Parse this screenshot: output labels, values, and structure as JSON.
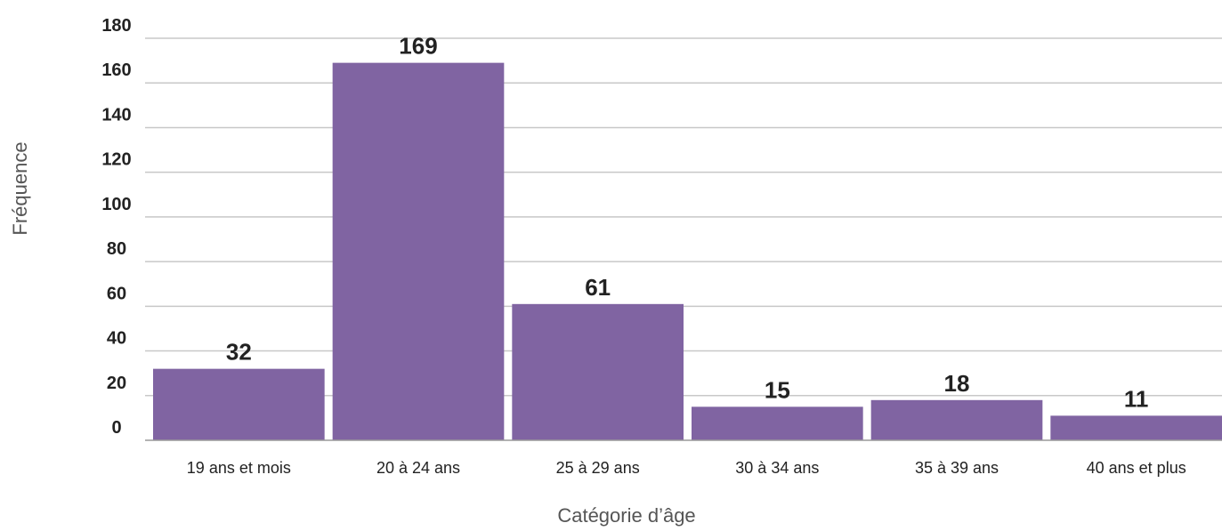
{
  "chart_data": {
    "type": "bar",
    "categories": [
      "19 ans et mois",
      "20 à 24 ans",
      "25 à 29 ans",
      "30 à 34 ans",
      "35 à 39 ans",
      "40 ans et plus"
    ],
    "values": [
      32,
      169,
      61,
      15,
      18,
      11
    ],
    "xlabel": "Catégorie d’âge",
    "ylabel": "Fréquence",
    "ylim": [
      0,
      180
    ],
    "yticks": [
      0,
      20,
      40,
      60,
      80,
      100,
      120,
      140,
      160,
      180
    ],
    "grid": true,
    "data_labels": true,
    "bar_color": "#8064a2",
    "grid_color": "#c8c8c8"
  }
}
